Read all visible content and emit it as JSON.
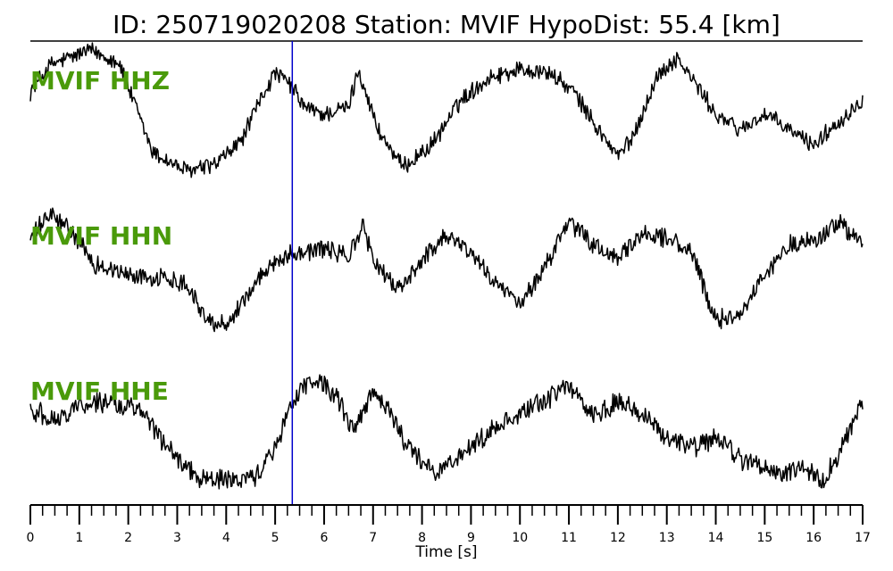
{
  "title": "ID: 250719020208   Station: MVIF   HypoDist:     55.4 [km]",
  "colors": {
    "trace": "#000000",
    "pick": "#0000cc",
    "channel_label": "#4a9a0a",
    "axis": "#000000"
  },
  "chart_data": {
    "type": "line",
    "title": "ID: 250719020208   Station: MVIF   HypoDist:     55.4 [km]",
    "xlabel": "Time [s]",
    "ylabel": "",
    "xlim": [
      0,
      17
    ],
    "x_ticks": [
      0,
      1,
      2,
      3,
      4,
      5,
      6,
      7,
      8,
      9,
      10,
      11,
      12,
      13,
      14,
      15,
      16,
      17
    ],
    "x_tick_labels": [
      "0",
      "1",
      "2",
      "3",
      "4",
      "5",
      "6",
      "7",
      "8",
      "9",
      "10",
      "11",
      "12",
      "13",
      "14",
      "15",
      "16",
      "17"
    ],
    "minor_tick_step": 0.25,
    "grid": false,
    "pick_time": 5.35,
    "amplitude_units": "normalized",
    "series": [
      {
        "name": "MVIF HHZ",
        "envelope": [
          [
            0,
            0.2
          ],
          [
            0.4,
            0.55
          ],
          [
            1.2,
            0.75
          ],
          [
            1.8,
            0.6
          ],
          [
            2.5,
            -0.6
          ],
          [
            3.2,
            -0.85
          ],
          [
            3.8,
            -0.75
          ],
          [
            4.3,
            -0.45
          ],
          [
            4.7,
            0.1
          ],
          [
            5.0,
            0.45
          ],
          [
            5.3,
            0.3
          ],
          [
            5.6,
            0.0
          ],
          [
            6.0,
            -0.1
          ],
          [
            6.5,
            0.0
          ],
          [
            6.7,
            0.5
          ],
          [
            6.8,
            0.3
          ],
          [
            7.1,
            -0.3
          ],
          [
            7.6,
            -0.8
          ],
          [
            8.2,
            -0.5
          ],
          [
            8.8,
            0.1
          ],
          [
            9.4,
            0.4
          ],
          [
            10.0,
            0.5
          ],
          [
            10.6,
            0.45
          ],
          [
            11.1,
            0.2
          ],
          [
            11.6,
            -0.3
          ],
          [
            12.0,
            -0.65
          ],
          [
            12.3,
            -0.4
          ],
          [
            12.8,
            0.4
          ],
          [
            13.2,
            0.65
          ],
          [
            13.6,
            0.3
          ],
          [
            14.0,
            -0.1
          ],
          [
            14.5,
            -0.3
          ],
          [
            15.0,
            -0.1
          ],
          [
            15.5,
            -0.3
          ],
          [
            16.0,
            -0.5
          ],
          [
            16.5,
            -0.2
          ],
          [
            17.0,
            0.1
          ]
        ],
        "noise": 0.1
      },
      {
        "name": "MVIF HHN",
        "envelope": [
          [
            0,
            0.4
          ],
          [
            0.4,
            0.7
          ],
          [
            0.8,
            0.5
          ],
          [
            1.3,
            0.05
          ],
          [
            2.0,
            -0.1
          ],
          [
            2.8,
            -0.15
          ],
          [
            3.2,
            -0.2
          ],
          [
            3.6,
            -0.7
          ],
          [
            4.0,
            -0.75
          ],
          [
            4.5,
            -0.3
          ],
          [
            5.0,
            0.1
          ],
          [
            5.4,
            0.2
          ],
          [
            6.0,
            0.25
          ],
          [
            6.5,
            0.15
          ],
          [
            6.8,
            0.55
          ],
          [
            7.0,
            0.1
          ],
          [
            7.5,
            -0.3
          ],
          [
            8.0,
            0.1
          ],
          [
            8.5,
            0.45
          ],
          [
            9.0,
            0.2
          ],
          [
            9.5,
            -0.2
          ],
          [
            10.0,
            -0.5
          ],
          [
            10.5,
            0.0
          ],
          [
            11.0,
            0.6
          ],
          [
            11.5,
            0.3
          ],
          [
            12.0,
            0.1
          ],
          [
            12.5,
            0.45
          ],
          [
            13.0,
            0.4
          ],
          [
            13.5,
            0.2
          ],
          [
            14.0,
            -0.7
          ],
          [
            14.5,
            -0.6
          ],
          [
            15.0,
            -0.1
          ],
          [
            15.5,
            0.3
          ],
          [
            16.0,
            0.35
          ],
          [
            16.5,
            0.6
          ],
          [
            17.0,
            0.3
          ]
        ],
        "noise": 0.11
      },
      {
        "name": "MVIF HHE",
        "envelope": [
          [
            0,
            0.2
          ],
          [
            0.5,
            0.05
          ],
          [
            1.0,
            0.25
          ],
          [
            1.5,
            0.3
          ],
          [
            2.2,
            0.2
          ],
          [
            2.8,
            -0.3
          ],
          [
            3.4,
            -0.7
          ],
          [
            4.0,
            -0.75
          ],
          [
            4.6,
            -0.7
          ],
          [
            5.0,
            -0.3
          ],
          [
            5.4,
            0.35
          ],
          [
            5.8,
            0.6
          ],
          [
            6.2,
            0.4
          ],
          [
            6.6,
            -0.1
          ],
          [
            7.0,
            0.4
          ],
          [
            7.3,
            0.2
          ],
          [
            7.8,
            -0.4
          ],
          [
            8.3,
            -0.65
          ],
          [
            8.8,
            -0.4
          ],
          [
            9.4,
            -0.1
          ],
          [
            10.0,
            0.15
          ],
          [
            10.6,
            0.35
          ],
          [
            11.0,
            0.5
          ],
          [
            11.5,
            0.1
          ],
          [
            12.0,
            0.3
          ],
          [
            12.5,
            0.15
          ],
          [
            13.0,
            -0.2
          ],
          [
            13.6,
            -0.3
          ],
          [
            14.0,
            -0.2
          ],
          [
            14.6,
            -0.5
          ],
          [
            15.2,
            -0.65
          ],
          [
            15.8,
            -0.6
          ],
          [
            16.2,
            -0.75
          ],
          [
            16.6,
            -0.3
          ],
          [
            17.0,
            0.3
          ]
        ],
        "noise": 0.12
      }
    ]
  }
}
